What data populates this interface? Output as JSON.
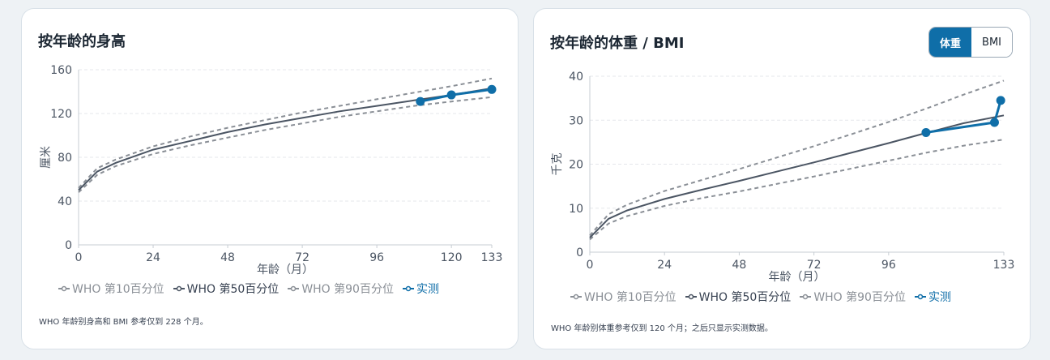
{
  "colors": {
    "p10": "#8a8f96",
    "p50": "#4b5563",
    "p90": "#8a8f96",
    "actual": "#0f6ea8",
    "grid": "#e5e7eb",
    "axis": "#c7cdd3"
  },
  "left_card": {
    "title": "按年龄的身高",
    "note": "WHO 年龄别身高和 BMI 参考仅到 228 个月。"
  },
  "right_card": {
    "title": "按年龄的体重 / BMI",
    "toggle": {
      "weight_label": "体重",
      "bmi_label": "BMI",
      "selected": "体重"
    },
    "note": "WHO 年龄别体重参考仅到 120 个月；之后只显示实测数据。"
  },
  "chart_data": [
    {
      "type": "line",
      "title": "按年龄的身高",
      "xlabel": "年龄（月）",
      "ylabel": "厘米",
      "xlim": [
        0,
        133
      ],
      "ylim": [
        0,
        160
      ],
      "xticks": [
        0,
        24,
        48,
        72,
        96,
        120,
        133
      ],
      "yticks": [
        0,
        40,
        80,
        120,
        160
      ],
      "grid": true,
      "legend_position": "bottom-left",
      "series": [
        {
          "name": "WHO 第10百分位",
          "style": "dashed",
          "x": [
            0,
            6,
            12,
            24,
            36,
            48,
            60,
            72,
            84,
            96,
            108,
            120,
            133
          ],
          "y": [
            48,
            64,
            72,
            83,
            91,
            98,
            105,
            111,
            117,
            122,
            127,
            131,
            135
          ]
        },
        {
          "name": "WHO 第50百分位",
          "style": "solid",
          "x": [
            0,
            6,
            12,
            24,
            36,
            48,
            60,
            72,
            84,
            96,
            108,
            120,
            133
          ],
          "y": [
            50,
            67,
            75,
            87,
            95,
            103,
            110,
            116,
            122,
            127,
            132,
            137,
            143
          ]
        },
        {
          "name": "WHO 第90百分位",
          "style": "dashed",
          "x": [
            0,
            6,
            12,
            24,
            36,
            48,
            60,
            72,
            84,
            96,
            108,
            120,
            133
          ],
          "y": [
            52,
            70,
            78,
            90,
            99,
            107,
            114,
            121,
            127,
            133,
            139,
            145,
            152
          ]
        },
        {
          "name": "实测",
          "style": "markers",
          "x": [
            110,
            120,
            133
          ],
          "y": [
            131,
            137,
            142
          ]
        }
      ]
    },
    {
      "type": "line",
      "title": "按年龄的体重 / BMI",
      "xlabel": "年龄（月）",
      "ylabel": "千克",
      "xlim": [
        0,
        133
      ],
      "ylim": [
        0,
        40
      ],
      "xticks": [
        0,
        24,
        48,
        72,
        96,
        133
      ],
      "yticks": [
        0,
        10,
        20,
        30,
        40
      ],
      "grid": true,
      "legend_position": "bottom-left",
      "series": [
        {
          "name": "WHO 第10百分位",
          "style": "dashed",
          "x": [
            0,
            6,
            12,
            24,
            36,
            48,
            60,
            72,
            84,
            96,
            108,
            120,
            133
          ],
          "y": [
            2.9,
            6.5,
            8.2,
            10.5,
            12.3,
            13.8,
            15.5,
            17.2,
            19.0,
            20.8,
            22.6,
            24.2,
            25.6
          ]
        },
        {
          "name": "WHO 第50百分位",
          "style": "solid",
          "x": [
            0,
            6,
            12,
            24,
            36,
            48,
            60,
            72,
            84,
            96,
            108,
            120,
            133
          ],
          "y": [
            3.3,
            7.6,
            9.5,
            12.1,
            14.2,
            16.2,
            18.3,
            20.4,
            22.6,
            24.8,
            27.1,
            29.3,
            31.1
          ]
        },
        {
          "name": "WHO 第90百分位",
          "style": "dashed",
          "x": [
            0,
            6,
            12,
            24,
            36,
            48,
            60,
            72,
            84,
            96,
            108,
            120,
            133
          ],
          "y": [
            3.8,
            8.6,
            10.8,
            13.9,
            16.4,
            18.9,
            21.5,
            24.1,
            26.8,
            29.6,
            32.6,
            35.8,
            39.0
          ]
        },
        {
          "name": "实测",
          "style": "markers",
          "x": [
            108,
            130,
            132
          ],
          "y": [
            27.2,
            29.5,
            34.5
          ]
        }
      ]
    }
  ]
}
